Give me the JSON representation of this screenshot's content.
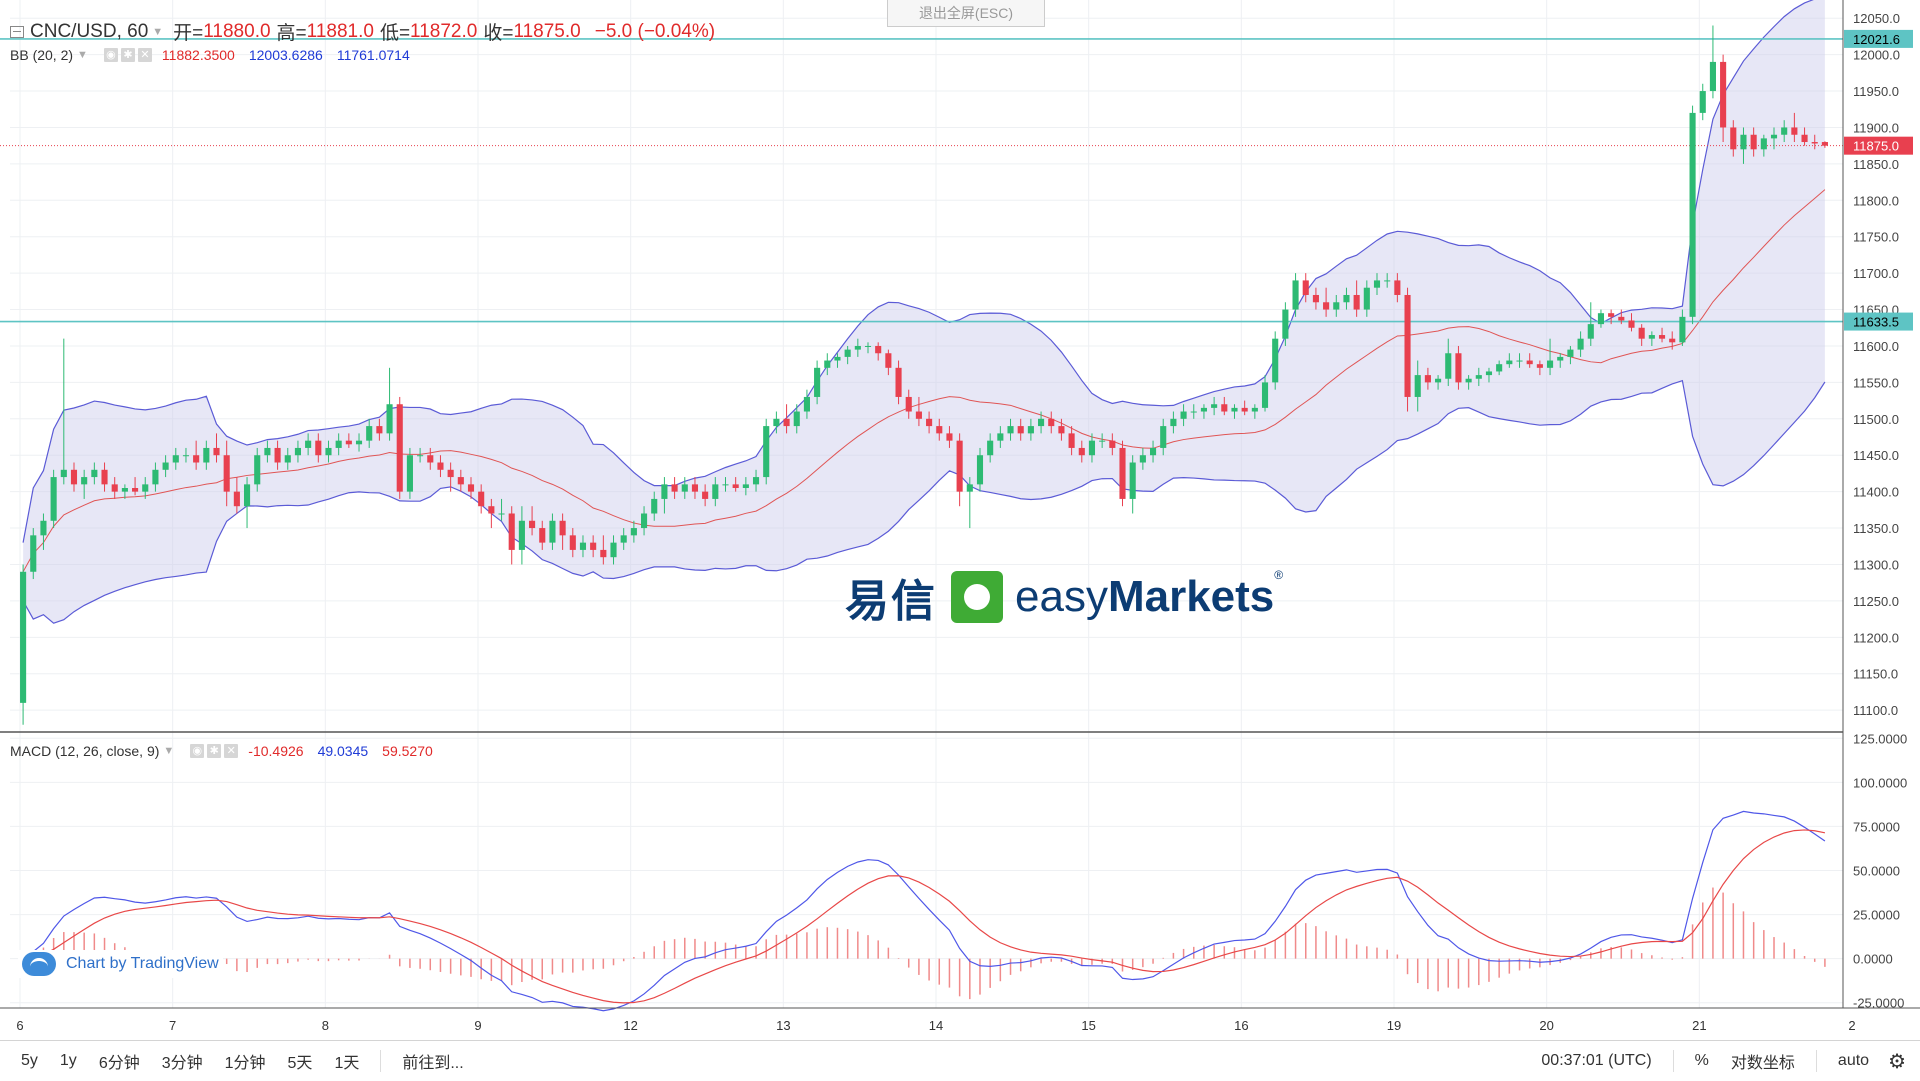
{
  "legend": {
    "symbol": "CNC/USD",
    "interval": "60",
    "open_label": "开=",
    "open": "11880.0",
    "high_label": "高=",
    "high": "11881.0",
    "low_label": "低=",
    "low": "11872.0",
    "close_label": "收=",
    "close": "11875.0",
    "change": "−5.0 (−0.04%)"
  },
  "bb": {
    "label": "BB (20, 2)",
    "middle": "11882.3500",
    "upper": "12003.6286",
    "lower": "11761.0714"
  },
  "macd": {
    "label": "MACD (12, 26, close, 9)",
    "histogram": "-10.4926",
    "macd_value": "49.0345",
    "signal_value": "59.5270"
  },
  "exit_fullscreen": "退出全屏(ESC)",
  "tradingview_credit": "Chart by TradingView",
  "watermark": {
    "chinese": "易信",
    "english_light": "easy",
    "english_bold": "Markets",
    "registered": "®"
  },
  "price_axis": {
    "ticks": [
      "12050.0",
      "12000.0",
      "11950.0",
      "11900.0",
      "11850.0",
      "11800.0",
      "11750.0",
      "11700.0",
      "11650.0",
      "11600.0",
      "11550.0",
      "11500.0",
      "11450.0",
      "11400.0",
      "11350.0",
      "11300.0",
      "11250.0",
      "11200.0",
      "11150.0",
      "11100.0"
    ],
    "badge_upper": "12021.6",
    "badge_last": "11875.0",
    "badge_lower": "11633.5"
  },
  "macd_axis": {
    "ticks": [
      "125.0000",
      "100.0000",
      "75.0000",
      "50.0000",
      "25.0000",
      "0.0000",
      "-25.0000"
    ]
  },
  "time_axis": {
    "ticks": [
      "6",
      "7",
      "8",
      "9",
      "12",
      "13",
      "14",
      "15",
      "16",
      "19",
      "20",
      "21",
      "2"
    ]
  },
  "toolbar": {
    "ranges": [
      "5y",
      "1y",
      "6分钟",
      "3分钟",
      "1分钟",
      "5天",
      "1天"
    ],
    "goto": "前往到...",
    "clock": "00:37:01 (UTC)",
    "percent": "%",
    "log_scale": "对数坐标",
    "auto": "auto"
  },
  "colors": {
    "up": "#26a69a",
    "up_candle": "#2dba73",
    "down": "#e8404f",
    "bb_band": "#5b5bd6",
    "bb_fill": "#c9c9ec",
    "basis": "#e05555",
    "hline": "#5ec4c4",
    "last_price": "#e8404f"
  },
  "chart_data": {
    "type": "candlestick",
    "price_range": [
      11070,
      12075
    ],
    "macd_range": [
      -28,
      128
    ],
    "horizontal_lines": [
      12021.6,
      11633.5
    ],
    "last_price": 11875.0,
    "candles": [
      [
        11110,
        11300,
        11080,
        11290
      ],
      [
        11290,
        11350,
        11280,
        11340
      ],
      [
        11340,
        11370,
        11320,
        11360
      ],
      [
        11360,
        11430,
        11350,
        11420
      ],
      [
        11420,
        11610,
        11410,
        11430
      ],
      [
        11430,
        11440,
        11400,
        11410
      ],
      [
        11410,
        11430,
        11390,
        11420
      ],
      [
        11420,
        11440,
        11410,
        11430
      ],
      [
        11430,
        11440,
        11400,
        11410
      ],
      [
        11410,
        11420,
        11390,
        11400
      ],
      [
        11400,
        11410,
        11390,
        11405
      ],
      [
        11405,
        11420,
        11395,
        11400
      ],
      [
        11400,
        11420,
        11390,
        11410
      ],
      [
        11410,
        11440,
        11400,
        11430
      ],
      [
        11430,
        11450,
        11420,
        11440
      ],
      [
        11440,
        11460,
        11430,
        11450
      ],
      [
        11450,
        11460,
        11440,
        11450
      ],
      [
        11450,
        11470,
        11430,
        11440
      ],
      [
        11440,
        11470,
        11430,
        11460
      ],
      [
        11460,
        11480,
        11440,
        11450
      ],
      [
        11450,
        11470,
        11380,
        11400
      ],
      [
        11400,
        11420,
        11370,
        11380
      ],
      [
        11380,
        11420,
        11350,
        11410
      ],
      [
        11410,
        11460,
        11400,
        11450
      ],
      [
        11450,
        11470,
        11440,
        11460
      ],
      [
        11460,
        11470,
        11430,
        11440
      ],
      [
        11440,
        11460,
        11430,
        11450
      ],
      [
        11450,
        11470,
        11440,
        11460
      ],
      [
        11460,
        11480,
        11450,
        11470
      ],
      [
        11470,
        11480,
        11440,
        11450
      ],
      [
        11450,
        11470,
        11440,
        11460
      ],
      [
        11460,
        11480,
        11450,
        11470
      ],
      [
        11470,
        11480,
        11460,
        11465
      ],
      [
        11465,
        11480,
        11455,
        11470
      ],
      [
        11470,
        11500,
        11460,
        11490
      ],
      [
        11490,
        11500,
        11470,
        11480
      ],
      [
        11480,
        11570,
        11470,
        11520
      ],
      [
        11520,
        11530,
        11390,
        11400
      ],
      [
        11400,
        11460,
        11390,
        11450
      ],
      [
        11450,
        11460,
        11440,
        11450
      ],
      [
        11450,
        11460,
        11430,
        11440
      ],
      [
        11440,
        11450,
        11420,
        11430
      ],
      [
        11430,
        11440,
        11400,
        11420
      ],
      [
        11420,
        11430,
        11400,
        11410
      ],
      [
        11410,
        11420,
        11390,
        11400
      ],
      [
        11400,
        11410,
        11370,
        11380
      ],
      [
        11380,
        11390,
        11350,
        11370
      ],
      [
        11370,
        11390,
        11360,
        11370
      ],
      [
        11370,
        11380,
        11300,
        11320
      ],
      [
        11320,
        11380,
        11300,
        11360
      ],
      [
        11360,
        11380,
        11340,
        11350
      ],
      [
        11350,
        11360,
        11320,
        11330
      ],
      [
        11330,
        11370,
        11320,
        11360
      ],
      [
        11360,
        11370,
        11320,
        11340
      ],
      [
        11340,
        11350,
        11310,
        11320
      ],
      [
        11320,
        11340,
        11310,
        11330
      ],
      [
        11330,
        11340,
        11310,
        11320
      ],
      [
        11320,
        11340,
        11300,
        11310
      ],
      [
        11310,
        11340,
        11300,
        11330
      ],
      [
        11330,
        11350,
        11320,
        11340
      ],
      [
        11340,
        11360,
        11330,
        11350
      ],
      [
        11350,
        11380,
        11340,
        11370
      ],
      [
        11370,
        11400,
        11360,
        11390
      ],
      [
        11390,
        11420,
        11370,
        11410
      ],
      [
        11410,
        11420,
        11390,
        11400
      ],
      [
        11400,
        11420,
        11390,
        11410
      ],
      [
        11410,
        11420,
        11390,
        11400
      ],
      [
        11400,
        11410,
        11380,
        11390
      ],
      [
        11390,
        11420,
        11380,
        11410
      ],
      [
        11410,
        11420,
        11400,
        11410
      ],
      [
        11410,
        11420,
        11400,
        11405
      ],
      [
        11405,
        11420,
        11395,
        11410
      ],
      [
        11410,
        11430,
        11400,
        11420
      ],
      [
        11420,
        11500,
        11410,
        11490
      ],
      [
        11490,
        11510,
        11480,
        11500
      ],
      [
        11500,
        11520,
        11480,
        11490
      ],
      [
        11490,
        11520,
        11480,
        11510
      ],
      [
        11510,
        11540,
        11500,
        11530
      ],
      [
        11530,
        11580,
        11520,
        11570
      ],
      [
        11570,
        11590,
        11560,
        11580
      ],
      [
        11580,
        11590,
        11570,
        11585
      ],
      [
        11585,
        11600,
        11575,
        11595
      ],
      [
        11595,
        11610,
        11585,
        11600
      ],
      [
        11600,
        11605,
        11590,
        11600
      ],
      [
        11600,
        11605,
        11580,
        11590
      ],
      [
        11590,
        11595,
        11560,
        11570
      ],
      [
        11570,
        11580,
        11520,
        11530
      ],
      [
        11530,
        11540,
        11500,
        11510
      ],
      [
        11510,
        11530,
        11490,
        11500
      ],
      [
        11500,
        11510,
        11480,
        11490
      ],
      [
        11490,
        11500,
        11470,
        11480
      ],
      [
        11480,
        11490,
        11460,
        11470
      ],
      [
        11470,
        11480,
        11380,
        11400
      ],
      [
        11400,
        11420,
        11350,
        11410
      ],
      [
        11410,
        11460,
        11400,
        11450
      ],
      [
        11450,
        11480,
        11440,
        11470
      ],
      [
        11470,
        11490,
        11460,
        11480
      ],
      [
        11480,
        11500,
        11470,
        11490
      ],
      [
        11490,
        11500,
        11470,
        11480
      ],
      [
        11480,
        11500,
        11470,
        11490
      ],
      [
        11490,
        11510,
        11480,
        11500
      ],
      [
        11500,
        11510,
        11480,
        11490
      ],
      [
        11490,
        11500,
        11470,
        11480
      ],
      [
        11480,
        11490,
        11450,
        11460
      ],
      [
        11460,
        11470,
        11440,
        11450
      ],
      [
        11450,
        11480,
        11440,
        11470
      ],
      [
        11470,
        11480,
        11460,
        11470
      ],
      [
        11470,
        11480,
        11450,
        11460
      ],
      [
        11460,
        11470,
        11380,
        11390
      ],
      [
        11390,
        11450,
        11370,
        11440
      ],
      [
        11440,
        11460,
        11430,
        11450
      ],
      [
        11450,
        11470,
        11440,
        11460
      ],
      [
        11460,
        11500,
        11450,
        11490
      ],
      [
        11490,
        11510,
        11480,
        11500
      ],
      [
        11500,
        11520,
        11490,
        11510
      ],
      [
        11510,
        11520,
        11500,
        11510
      ],
      [
        11510,
        11520,
        11500,
        11515
      ],
      [
        11515,
        11530,
        11505,
        11520
      ],
      [
        11520,
        11530,
        11505,
        11510
      ],
      [
        11510,
        11520,
        11500,
        11515
      ],
      [
        11515,
        11525,
        11505,
        11510
      ],
      [
        11510,
        11520,
        11500,
        11515
      ],
      [
        11515,
        11560,
        11510,
        11550
      ],
      [
        11550,
        11620,
        11540,
        11610
      ],
      [
        11610,
        11660,
        11600,
        11650
      ],
      [
        11650,
        11700,
        11640,
        11690
      ],
      [
        11690,
        11700,
        11660,
        11670
      ],
      [
        11670,
        11680,
        11650,
        11660
      ],
      [
        11660,
        11680,
        11640,
        11650
      ],
      [
        11650,
        11670,
        11640,
        11660
      ],
      [
        11660,
        11680,
        11650,
        11670
      ],
      [
        11670,
        11690,
        11640,
        11650
      ],
      [
        11650,
        11690,
        11640,
        11680
      ],
      [
        11680,
        11700,
        11670,
        11690
      ],
      [
        11690,
        11700,
        11680,
        11690
      ],
      [
        11690,
        11700,
        11660,
        11670
      ],
      [
        11670,
        11680,
        11510,
        11530
      ],
      [
        11530,
        11580,
        11510,
        11560
      ],
      [
        11560,
        11570,
        11540,
        11550
      ],
      [
        11550,
        11560,
        11540,
        11555
      ],
      [
        11555,
        11610,
        11545,
        11590
      ],
      [
        11590,
        11600,
        11540,
        11550
      ],
      [
        11550,
        11560,
        11540,
        11555
      ],
      [
        11555,
        11570,
        11545,
        11560
      ],
      [
        11560,
        11570,
        11550,
        11565
      ],
      [
        11565,
        11580,
        11560,
        11575
      ],
      [
        11575,
        11590,
        11570,
        11580
      ],
      [
        11580,
        11590,
        11570,
        11580
      ],
      [
        11580,
        11590,
        11570,
        11575
      ],
      [
        11575,
        11580,
        11560,
        11570
      ],
      [
        11570,
        11610,
        11560,
        11580
      ],
      [
        11580,
        11590,
        11570,
        11585
      ],
      [
        11585,
        11600,
        11575,
        11595
      ],
      [
        11595,
        11620,
        11585,
        11610
      ],
      [
        11610,
        11660,
        11600,
        11630
      ],
      [
        11630,
        11650,
        11625,
        11645
      ],
      [
        11645,
        11650,
        11630,
        11640
      ],
      [
        11640,
        11650,
        11630,
        11635
      ],
      [
        11635,
        11645,
        11620,
        11625
      ],
      [
        11625,
        11630,
        11600,
        11610
      ],
      [
        11610,
        11620,
        11600,
        11615
      ],
      [
        11615,
        11625,
        11605,
        11610
      ],
      [
        11610,
        11620,
        11595,
        11605
      ],
      [
        11605,
        11650,
        11600,
        11640
      ],
      [
        11640,
        11930,
        11630,
        11920
      ],
      [
        11920,
        11960,
        11910,
        11950
      ],
      [
        11950,
        12040,
        11940,
        11990
      ],
      [
        11990,
        12000,
        11880,
        11900
      ],
      [
        11900,
        11910,
        11860,
        11870
      ],
      [
        11870,
        11900,
        11850,
        11890
      ],
      [
        11890,
        11900,
        11860,
        11870
      ],
      [
        11870,
        11890,
        11860,
        11885
      ],
      [
        11885,
        11900,
        11870,
        11890
      ],
      [
        11890,
        11910,
        11880,
        11900
      ],
      [
        11900,
        11920,
        11880,
        11890
      ],
      [
        11890,
        11900,
        11875,
        11880
      ],
      [
        11880,
        11890,
        11870,
        11878
      ],
      [
        11880,
        11881,
        11872,
        11875
      ]
    ]
  }
}
